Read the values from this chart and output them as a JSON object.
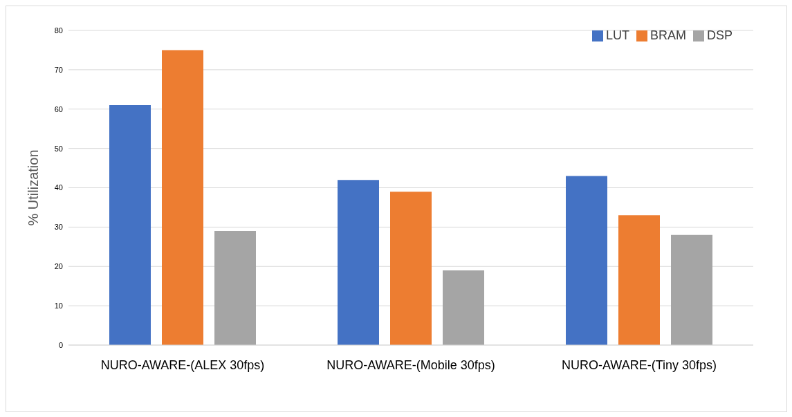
{
  "chart_data": {
    "type": "bar",
    "ylabel": "% Utilization",
    "categories": [
      "NURO-AWARE-(ALEX 30fps)",
      "NURO-AWARE-(Mobile 30fps)",
      "NURO-AWARE-(Tiny 30fps)"
    ],
    "series": [
      {
        "name": "LUT",
        "color": "#4472c4",
        "values": [
          61,
          42,
          43
        ]
      },
      {
        "name": "BRAM",
        "color": "#ed7d31",
        "values": [
          75,
          39,
          33
        ]
      },
      {
        "name": "DSP",
        "color": "#a5a5a5",
        "values": [
          29,
          19,
          28
        ]
      }
    ],
    "ylim": [
      0,
      80
    ],
    "yticks": [
      0,
      10,
      20,
      30,
      40,
      50,
      60,
      70,
      80
    ],
    "grid": "y",
    "legend": "top right"
  }
}
